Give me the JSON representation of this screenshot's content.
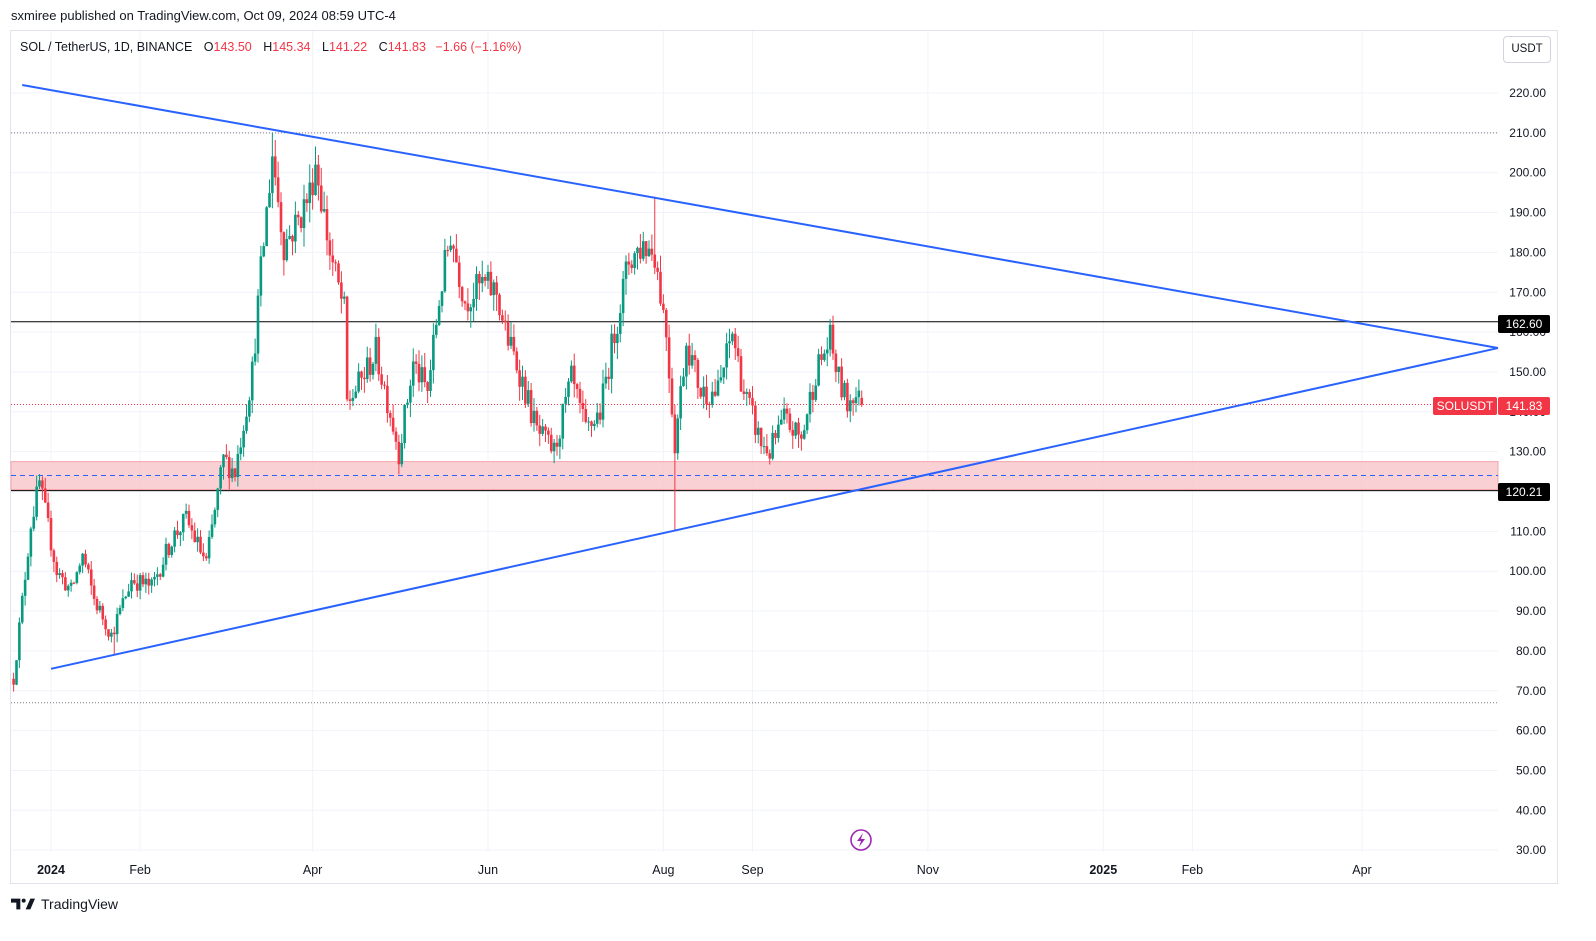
{
  "header": {
    "publisher_line": "sxmiree published on TradingView.com, Oct 09, 2024 08:59 UTC-4"
  },
  "legend": {
    "symbol": "SOL / TetherUS, 1D, BINANCE",
    "open_label": "O",
    "open_value": "143.50",
    "high_label": "H",
    "high_value": "145.34",
    "low_label": "L",
    "low_value": "141.22",
    "close_label": "C",
    "close_value": "141.83",
    "change": "−1.66 (−1.16%)"
  },
  "currency_button": "USDT",
  "footer": {
    "brand": "TradingView"
  },
  "price_labels": {
    "resistance": "162.60",
    "support": "120.21",
    "symbol_tag": "SOLUSDT",
    "last_price": "141.83"
  },
  "colors": {
    "up": "#089981",
    "down": "#f23645",
    "trendline": "#2962ff",
    "zone_fill": "#f7c5c9",
    "zone_mid": "#2962ff",
    "level_line": "#000000"
  },
  "icons": {
    "replay": "lightning-icon",
    "brand": "tradingview-logo-icon"
  },
  "chart_data": {
    "type": "candlestick",
    "symbol": "SOLUSDT",
    "timeframe": "1D",
    "y_ticks": [
      220,
      210,
      200,
      190,
      180,
      170,
      160,
      150,
      140,
      130,
      120,
      110,
      100,
      90,
      80,
      70,
      60,
      50,
      40,
      30
    ],
    "y_tick_labels": [
      "220.00",
      "210.00",
      "200.00",
      "190.00",
      "180.00",
      "170.00",
      "160.00",
      "150.00",
      "140.00",
      "130.00",
      "120.00",
      "110.00",
      "100.00",
      "90.00",
      "80.00",
      "70.00",
      "60.00",
      "50.00",
      "40.00",
      "30.00"
    ],
    "ylim": [
      30,
      230
    ],
    "x_range": [
      "2023-12-18",
      "2025-05-25"
    ],
    "x_ticks": [
      {
        "date": "2024-01-01",
        "label": "2024",
        "bold": true
      },
      {
        "date": "2024-02-01",
        "label": "Feb",
        "bold": false
      },
      {
        "date": "2024-04-01",
        "label": "Apr",
        "bold": false
      },
      {
        "date": "2024-06-01",
        "label": "Jun",
        "bold": false
      },
      {
        "date": "2024-08-01",
        "label": "Aug",
        "bold": false
      },
      {
        "date": "2024-09-01",
        "label": "Sep",
        "bold": false
      },
      {
        "date": "2024-11-01",
        "label": "Nov",
        "bold": false
      },
      {
        "date": "2025-01-01",
        "label": "2025",
        "bold": true
      },
      {
        "date": "2025-02-01",
        "label": "Feb",
        "bold": false
      },
      {
        "date": "2025-04-01",
        "label": "Apr",
        "bold": false
      }
    ],
    "price_path": [
      [
        "2023-12-19",
        73
      ],
      [
        "2023-12-25",
        112
      ],
      [
        "2023-12-28",
        122
      ],
      [
        "2024-01-03",
        100
      ],
      [
        "2024-01-08",
        95
      ],
      [
        "2024-01-12",
        104
      ],
      [
        "2024-01-16",
        93
      ],
      [
        "2024-01-22",
        84
      ],
      [
        "2024-01-29",
        98
      ],
      [
        "2024-02-05",
        96
      ],
      [
        "2024-02-12",
        108
      ],
      [
        "2024-02-17",
        113
      ],
      [
        "2024-02-24",
        102
      ],
      [
        "2024-03-01",
        128
      ],
      [
        "2024-03-05",
        125
      ],
      [
        "2024-03-11",
        150
      ],
      [
        "2024-03-14",
        175
      ],
      [
        "2024-03-18",
        205
      ],
      [
        "2024-03-22",
        182
      ],
      [
        "2024-03-27",
        188
      ],
      [
        "2024-03-31",
        195
      ],
      [
        "2024-04-02",
        203
      ],
      [
        "2024-04-07",
        180
      ],
      [
        "2024-04-12",
        165
      ],
      [
        "2024-04-13",
        142
      ],
      [
        "2024-04-18",
        148
      ],
      [
        "2024-04-23",
        155
      ],
      [
        "2024-04-28",
        140
      ],
      [
        "2024-05-01",
        130
      ],
      [
        "2024-05-06",
        152
      ],
      [
        "2024-05-11",
        145
      ],
      [
        "2024-05-15",
        168
      ],
      [
        "2024-05-19",
        185
      ],
      [
        "2024-05-24",
        168
      ],
      [
        "2024-05-30",
        172
      ],
      [
        "2024-06-04",
        170
      ],
      [
        "2024-06-07",
        160
      ],
      [
        "2024-06-12",
        150
      ],
      [
        "2024-06-18",
        135
      ],
      [
        "2024-06-24",
        130
      ],
      [
        "2024-06-30",
        148
      ],
      [
        "2024-07-05",
        135
      ],
      [
        "2024-07-10",
        140
      ],
      [
        "2024-07-15",
        160
      ],
      [
        "2024-07-20",
        178
      ],
      [
        "2024-07-25",
        182
      ],
      [
        "2024-07-29",
        180
      ],
      [
        "2024-08-02",
        160
      ],
      [
        "2024-08-05",
        132
      ],
      [
        "2024-08-09",
        158
      ],
      [
        "2024-08-14",
        145
      ],
      [
        "2024-08-20",
        145
      ],
      [
        "2024-08-25",
        160
      ],
      [
        "2024-08-29",
        145
      ],
      [
        "2024-09-04",
        132
      ],
      [
        "2024-09-07",
        130
      ],
      [
        "2024-09-12",
        138
      ],
      [
        "2024-09-18",
        133
      ],
      [
        "2024-09-23",
        150
      ],
      [
        "2024-09-28",
        158
      ],
      [
        "2024-10-01",
        148
      ],
      [
        "2024-10-04",
        142
      ],
      [
        "2024-10-06",
        145
      ],
      [
        "2024-10-09",
        141.83
      ]
    ],
    "last_candle": {
      "date": "2024-10-09",
      "open": 143.5,
      "high": 145.34,
      "low": 141.22,
      "close": 141.83
    },
    "annotations": {
      "upper_trendline": {
        "from": [
          "2023-12-22",
          222
        ],
        "to": [
          "2025-05-25",
          156
        ]
      },
      "lower_trendline": {
        "from": [
          "2024-01-01",
          75.5
        ],
        "to": [
          "2025-05-25",
          156
        ]
      },
      "horizontal_lines": [
        162.6,
        120.21
      ],
      "dotted_lines": [
        210,
        67
      ],
      "support_zone": {
        "from": 120.5,
        "to": 127.5,
        "mid": 124
      },
      "notable_highs": [
        {
          "date": "2024-03-18",
          "value": 210
        },
        {
          "date": "2024-07-29",
          "value": 194
        }
      ],
      "notable_lows": [
        {
          "date": "2024-08-05",
          "value": 110
        },
        {
          "date": "2024-01-23",
          "value": 79
        }
      ]
    }
  }
}
